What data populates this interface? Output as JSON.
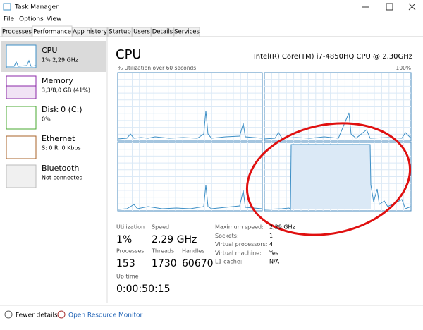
{
  "window": {
    "title": "Task Manager"
  },
  "menu": [
    "File",
    "Options",
    "View"
  ],
  "tabs": [
    "Processes",
    "Performance",
    "App history",
    "Startup",
    "Users",
    "Details",
    "Services"
  ],
  "sidebar": [
    {
      "name": "CPU",
      "detail": "1% 2,29 GHz"
    },
    {
      "name": "Memory",
      "detail": "3,3/8,0 GB (41%)"
    },
    {
      "name": "Disk 0 (C:)",
      "detail": "0%"
    },
    {
      "name": "Ethernet",
      "detail": "S: 0 R: 0 Kbps"
    },
    {
      "name": "Bluetooth",
      "detail": "Not connected"
    }
  ],
  "header": {
    "title": "CPU",
    "processor": "Intel(R) Core(TM) i7-4850HQ CPU @ 2.30GHz",
    "graph_label": "% Utilization over 60 seconds",
    "graph_max": "100%"
  },
  "stats": [
    {
      "label": "Utilization",
      "value": "1%"
    },
    {
      "label": "Speed",
      "value": "2,29 GHz"
    },
    {
      "label": "Processes",
      "value": "153"
    },
    {
      "label": "Threads",
      "value": "1730"
    },
    {
      "label": "Handles",
      "value": "60670"
    },
    {
      "label": "Up time",
      "value": "0:00:50:15"
    }
  ],
  "specs": [
    {
      "label": "Maximum speed:",
      "value": "2,29 GHz"
    },
    {
      "label": "Sockets:",
      "value": "1"
    },
    {
      "label": "Virtual processors:",
      "value": "4"
    },
    {
      "label": "Virtual machine:",
      "value": "Yes"
    },
    {
      "label": "L1 cache:",
      "value": "N/A"
    }
  ],
  "footer": {
    "fewer": "Fewer details",
    "monitor": "Open Resource Monitor"
  }
}
